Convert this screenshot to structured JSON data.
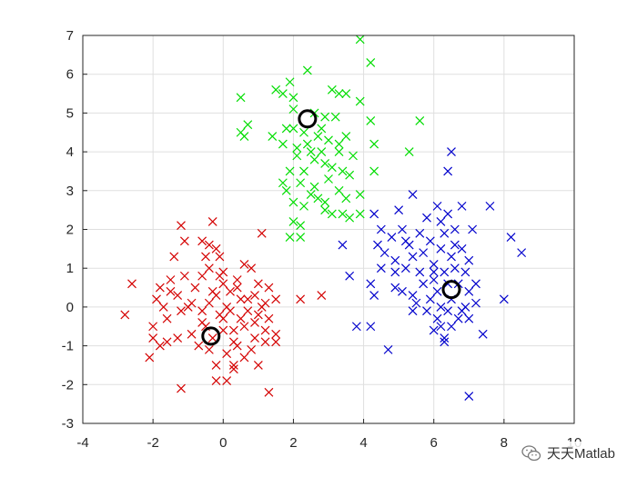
{
  "chart_data": {
    "type": "scatter",
    "xlim": [
      -4,
      10
    ],
    "ylim": [
      -3,
      7
    ],
    "xticks": [
      "-4",
      "-2",
      "0",
      "2",
      "4",
      "6",
      "8",
      "10"
    ],
    "yticks": [
      "-3",
      "-2",
      "-1",
      "0",
      "1",
      "2",
      "3",
      "4",
      "5",
      "6",
      "7"
    ],
    "grid": true,
    "marker": "x",
    "series": [
      {
        "color": "#d40000",
        "points": [
          [
            -1.2,
            2.1
          ],
          [
            -0.3,
            2.2
          ],
          [
            -1.1,
            1.7
          ],
          [
            -0.6,
            1.7
          ],
          [
            -0.4,
            1.6
          ],
          [
            -0.2,
            1.5
          ],
          [
            1.1,
            1.9
          ],
          [
            -1.4,
            1.3
          ],
          [
            -0.5,
            1.3
          ],
          [
            -0.1,
            1.3
          ],
          [
            -2.6,
            0.6
          ],
          [
            -1.8,
            0.5
          ],
          [
            -1.5,
            0.7
          ],
          [
            -1.1,
            0.8
          ],
          [
            -0.6,
            0.8
          ],
          [
            -0.4,
            1.0
          ],
          [
            0.0,
            0.6
          ],
          [
            0.4,
            0.5
          ],
          [
            0.6,
            1.1
          ],
          [
            0.8,
            1.0
          ],
          [
            1.0,
            0.6
          ],
          [
            1.3,
            0.5
          ],
          [
            1.5,
            0.2
          ],
          [
            1.2,
            0.1
          ],
          [
            0.9,
            0.3
          ],
          [
            0.5,
            0.2
          ],
          [
            0.2,
            0.4
          ],
          [
            0.0,
            0.9
          ],
          [
            -0.3,
            0.4
          ],
          [
            -0.8,
            0.5
          ],
          [
            -1.3,
            0.3
          ],
          [
            -1.7,
            0.0
          ],
          [
            -1.9,
            0.2
          ],
          [
            -2.8,
            -0.2
          ],
          [
            -2.0,
            -0.5
          ],
          [
            -1.6,
            -0.3
          ],
          [
            -1.2,
            -0.1
          ],
          [
            -0.9,
            0.1
          ],
          [
            -0.6,
            -0.1
          ],
          [
            -0.4,
            0.1
          ],
          [
            -0.1,
            -0.2
          ],
          [
            0.2,
            -0.1
          ],
          [
            0.5,
            -0.3
          ],
          [
            0.7,
            -0.1
          ],
          [
            1.0,
            -0.2
          ],
          [
            1.3,
            -0.3
          ],
          [
            1.5,
            -0.7
          ],
          [
            1.2,
            -0.6
          ],
          [
            0.9,
            -0.8
          ],
          [
            0.6,
            -0.5
          ],
          [
            0.3,
            -0.9
          ],
          [
            0.0,
            -0.6
          ],
          [
            -0.3,
            -0.8
          ],
          [
            -0.6,
            -0.4
          ],
          [
            -0.9,
            -0.7
          ],
          [
            -1.3,
            -0.8
          ],
          [
            -1.6,
            -0.9
          ],
          [
            -2.0,
            -0.8
          ],
          [
            -1.8,
            -1.0
          ],
          [
            -2.1,
            -1.3
          ],
          [
            -0.4,
            -1.1
          ],
          [
            0.1,
            -1.2
          ],
          [
            0.4,
            -1.0
          ],
          [
            0.8,
            -1.1
          ],
          [
            1.2,
            -0.9
          ],
          [
            1.5,
            -0.9
          ],
          [
            -0.2,
            -1.5
          ],
          [
            0.3,
            -1.5
          ],
          [
            0.6,
            -1.3
          ],
          [
            1.0,
            -1.5
          ],
          [
            -1.2,
            -2.1
          ],
          [
            -0.2,
            -1.9
          ],
          [
            0.1,
            -1.9
          ],
          [
            0.3,
            -1.6
          ],
          [
            1.3,
            -2.2
          ],
          [
            -0.5,
            -0.5
          ],
          [
            0.1,
            0.0
          ],
          [
            -0.2,
            0.3
          ],
          [
            0.4,
            0.7
          ],
          [
            0.7,
            0.2
          ],
          [
            2.2,
            0.2
          ],
          [
            2.8,
            0.3
          ],
          [
            -1.0,
            0.0
          ],
          [
            0.0,
            -0.3
          ],
          [
            0.3,
            -0.6
          ],
          [
            -0.7,
            -1.0
          ],
          [
            0.9,
            -0.4
          ],
          [
            1.1,
            0.0
          ],
          [
            -1.5,
            0.4
          ],
          [
            -0.1,
            0.8
          ]
        ]
      },
      {
        "color": "#00dd00",
        "points": [
          [
            3.9,
            6.9
          ],
          [
            4.2,
            6.3
          ],
          [
            2.4,
            6.1
          ],
          [
            1.9,
            5.8
          ],
          [
            1.5,
            5.6
          ],
          [
            1.7,
            5.5
          ],
          [
            2.0,
            5.4
          ],
          [
            3.1,
            5.6
          ],
          [
            3.3,
            5.5
          ],
          [
            3.5,
            5.5
          ],
          [
            0.5,
            5.4
          ],
          [
            3.9,
            5.3
          ],
          [
            2.6,
            5.0
          ],
          [
            2.9,
            4.9
          ],
          [
            3.2,
            4.9
          ],
          [
            0.7,
            4.7
          ],
          [
            0.5,
            4.5
          ],
          [
            0.6,
            4.4
          ],
          [
            1.4,
            4.4
          ],
          [
            2.0,
            4.6
          ],
          [
            2.3,
            4.5
          ],
          [
            2.7,
            4.4
          ],
          [
            3.0,
            4.3
          ],
          [
            3.5,
            4.4
          ],
          [
            4.2,
            4.8
          ],
          [
            5.6,
            4.8
          ],
          [
            4.3,
            4.2
          ],
          [
            1.7,
            4.2
          ],
          [
            2.1,
            4.1
          ],
          [
            2.5,
            4.0
          ],
          [
            2.8,
            4.0
          ],
          [
            3.3,
            4.0
          ],
          [
            3.7,
            3.9
          ],
          [
            2.1,
            3.9
          ],
          [
            2.6,
            3.8
          ],
          [
            2.9,
            3.7
          ],
          [
            1.9,
            3.5
          ],
          [
            2.3,
            3.5
          ],
          [
            3.0,
            3.3
          ],
          [
            3.4,
            3.5
          ],
          [
            3.6,
            3.4
          ],
          [
            4.3,
            3.5
          ],
          [
            5.3,
            4.0
          ],
          [
            1.7,
            3.2
          ],
          [
            2.2,
            3.2
          ],
          [
            2.6,
            3.1
          ],
          [
            3.3,
            3.0
          ],
          [
            3.9,
            2.9
          ],
          [
            2.5,
            2.9
          ],
          [
            2.9,
            2.7
          ],
          [
            2.7,
            2.8
          ],
          [
            3.5,
            2.8
          ],
          [
            2.0,
            2.7
          ],
          [
            2.3,
            2.6
          ],
          [
            2.9,
            2.5
          ],
          [
            3.1,
            2.4
          ],
          [
            3.4,
            2.4
          ],
          [
            2.0,
            2.2
          ],
          [
            2.2,
            2.1
          ],
          [
            1.9,
            1.8
          ],
          [
            3.9,
            2.4
          ],
          [
            3.6,
            2.3
          ],
          [
            2.2,
            1.8
          ],
          [
            1.8,
            3.0
          ],
          [
            3.1,
            3.6
          ],
          [
            2.4,
            4.2
          ],
          [
            1.8,
            4.6
          ],
          [
            2.8,
            4.6
          ],
          [
            3.3,
            4.2
          ],
          [
            2.0,
            5.1
          ]
        ]
      },
      {
        "color": "#0000cc",
        "points": [
          [
            6.5,
            4.0
          ],
          [
            6.4,
            3.5
          ],
          [
            7.6,
            2.6
          ],
          [
            4.3,
            2.4
          ],
          [
            4.5,
            2.0
          ],
          [
            5.0,
            2.5
          ],
          [
            5.4,
            2.9
          ],
          [
            5.8,
            2.3
          ],
          [
            6.1,
            2.6
          ],
          [
            6.4,
            2.4
          ],
          [
            6.8,
            2.6
          ],
          [
            6.2,
            2.2
          ],
          [
            5.6,
            1.9
          ],
          [
            5.1,
            2.0
          ],
          [
            4.8,
            1.8
          ],
          [
            4.4,
            1.6
          ],
          [
            3.4,
            1.6
          ],
          [
            5.3,
            1.6
          ],
          [
            5.9,
            1.7
          ],
          [
            6.3,
            1.9
          ],
          [
            6.6,
            2.0
          ],
          [
            7.1,
            2.0
          ],
          [
            8.2,
            1.8
          ],
          [
            8.5,
            1.4
          ],
          [
            4.6,
            1.4
          ],
          [
            4.9,
            1.2
          ],
          [
            5.4,
            1.3
          ],
          [
            5.7,
            1.4
          ],
          [
            6.0,
            1.1
          ],
          [
            6.2,
            1.5
          ],
          [
            6.5,
            1.3
          ],
          [
            6.8,
            1.5
          ],
          [
            7.0,
            1.2
          ],
          [
            4.5,
            1.0
          ],
          [
            4.9,
            0.9
          ],
          [
            5.2,
            1.0
          ],
          [
            5.6,
            0.9
          ],
          [
            6.0,
            0.7
          ],
          [
            6.3,
            0.9
          ],
          [
            6.6,
            1.0
          ],
          [
            6.9,
            0.9
          ],
          [
            7.2,
            0.6
          ],
          [
            3.6,
            0.8
          ],
          [
            4.2,
            0.6
          ],
          [
            4.9,
            0.5
          ],
          [
            5.4,
            0.3
          ],
          [
            5.7,
            0.6
          ],
          [
            6.1,
            0.4
          ],
          [
            6.4,
            0.6
          ],
          [
            6.7,
            0.6
          ],
          [
            7.0,
            0.4
          ],
          [
            4.3,
            0.3
          ],
          [
            5.1,
            0.4
          ],
          [
            5.5,
            0.1
          ],
          [
            5.9,
            0.2
          ],
          [
            6.2,
            0.0
          ],
          [
            6.5,
            0.2
          ],
          [
            6.9,
            0.0
          ],
          [
            7.2,
            0.1
          ],
          [
            8.0,
            0.2
          ],
          [
            5.4,
            -0.1
          ],
          [
            5.8,
            -0.1
          ],
          [
            6.1,
            -0.3
          ],
          [
            6.4,
            -0.1
          ],
          [
            6.7,
            -0.3
          ],
          [
            6.2,
            -0.5
          ],
          [
            6.5,
            -0.5
          ],
          [
            7.0,
            -0.3
          ],
          [
            6.3,
            -0.8
          ],
          [
            3.8,
            -0.5
          ],
          [
            4.2,
            -0.5
          ],
          [
            6.3,
            -0.9
          ],
          [
            4.7,
            -1.1
          ],
          [
            7.4,
            -0.7
          ],
          [
            7.0,
            -2.3
          ],
          [
            6.0,
            0.9
          ],
          [
            6.6,
            1.6
          ],
          [
            5.2,
            1.7
          ],
          [
            6.8,
            -0.1
          ],
          [
            6.0,
            -0.6
          ]
        ]
      }
    ],
    "centroids": [
      [
        -0.35,
        -0.75
      ],
      [
        2.4,
        4.85
      ],
      [
        6.5,
        0.45
      ]
    ]
  },
  "watermark": {
    "text": "天天Matlab",
    "icon": "wechat-icon"
  }
}
